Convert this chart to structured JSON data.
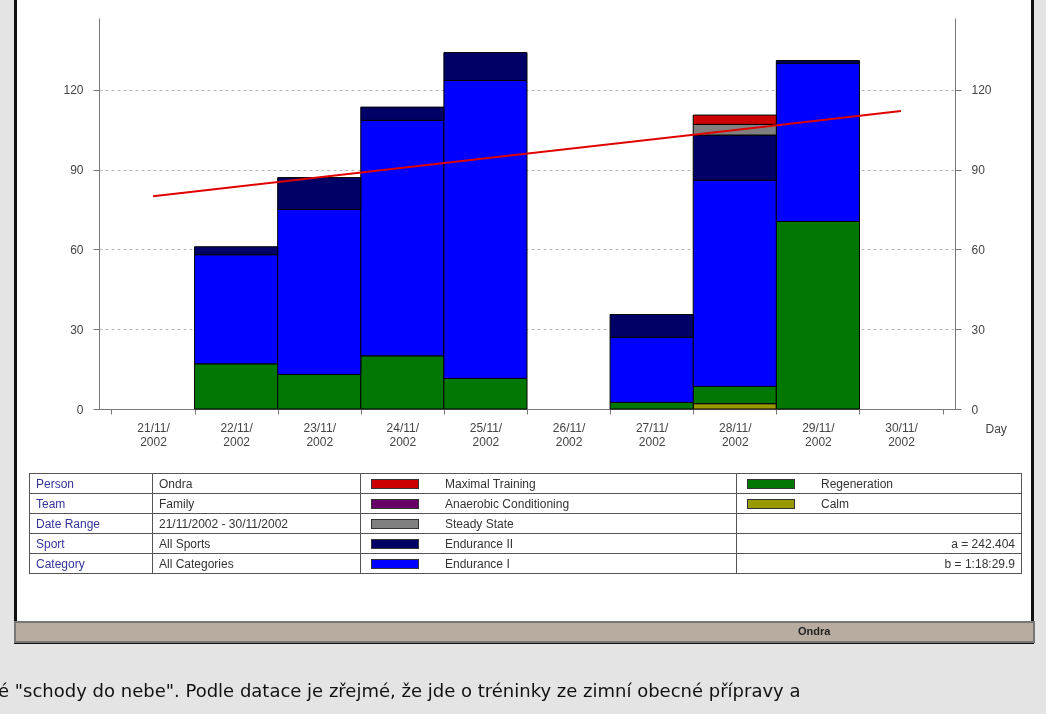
{
  "chart_data": {
    "type": "bar",
    "stacked": true,
    "xlabel": "Day",
    "categories": [
      "21/11/2002",
      "22/11/2002",
      "23/11/2002",
      "24/11/2002",
      "25/11/2002",
      "26/11/2002",
      "27/11/2002",
      "28/11/2002",
      "29/11/2002",
      "30/11/2002"
    ],
    "series": [
      {
        "name": "Calm",
        "color": "#999900",
        "values": [
          null,
          null,
          null,
          null,
          null,
          null,
          null,
          2,
          null,
          null
        ]
      },
      {
        "name": "Regeneration",
        "color": "#007700",
        "values": [
          null,
          17,
          13,
          20,
          11.5,
          null,
          2.5,
          6.5,
          70.5,
          null
        ]
      },
      {
        "name": "Endurance I",
        "color": "#0000ff",
        "values": [
          null,
          41,
          62,
          88.5,
          112,
          null,
          24.5,
          77.5,
          59.5,
          null
        ]
      },
      {
        "name": "Endurance II",
        "color": "#000066",
        "values": [
          null,
          3,
          12,
          5,
          10.5,
          null,
          8.5,
          17,
          1,
          null
        ]
      },
      {
        "name": "Steady State",
        "color": "#808080",
        "values": [
          null,
          null,
          null,
          null,
          null,
          null,
          null,
          4,
          null,
          null
        ]
      },
      {
        "name": "Anaerobic Conditioning",
        "color": "#660066",
        "values": [
          null,
          null,
          null,
          null,
          null,
          null,
          null,
          null,
          null,
          null
        ]
      },
      {
        "name": "Maximal Training",
        "color": "#cc0000",
        "values": [
          null,
          null,
          null,
          null,
          null,
          null,
          null,
          3.5,
          null,
          null
        ]
      },
      {
        "type": "line",
        "axis": "y2",
        "color": "#e00000",
        "x": [
          "21/11/2002",
          "30/11/2002"
        ],
        "values": [
          80,
          112
        ]
      }
    ],
    "ylim": [
      0,
      147
    ],
    "yticks": [
      0,
      30,
      60,
      90,
      120
    ],
    "y2lim": [
      0,
      147
    ],
    "y2ticks": [
      0,
      30,
      60,
      90,
      120
    ],
    "grid": "y",
    "legend": "bottom",
    "annotations": [
      "Person",
      "Ondra",
      "Team",
      "Family",
      "Date Range",
      "21/11/2002 - 30/11/2002",
      "Sport",
      "All Sports",
      "Category",
      "All Categories",
      "a = 242.404",
      "b = 1:18:29.9",
      "Ondra",
      "é \"schody do nebe\". Podle datace je zřejmé, že jde o tréninky ze zimní obecné přípravy a"
    ]
  }
}
